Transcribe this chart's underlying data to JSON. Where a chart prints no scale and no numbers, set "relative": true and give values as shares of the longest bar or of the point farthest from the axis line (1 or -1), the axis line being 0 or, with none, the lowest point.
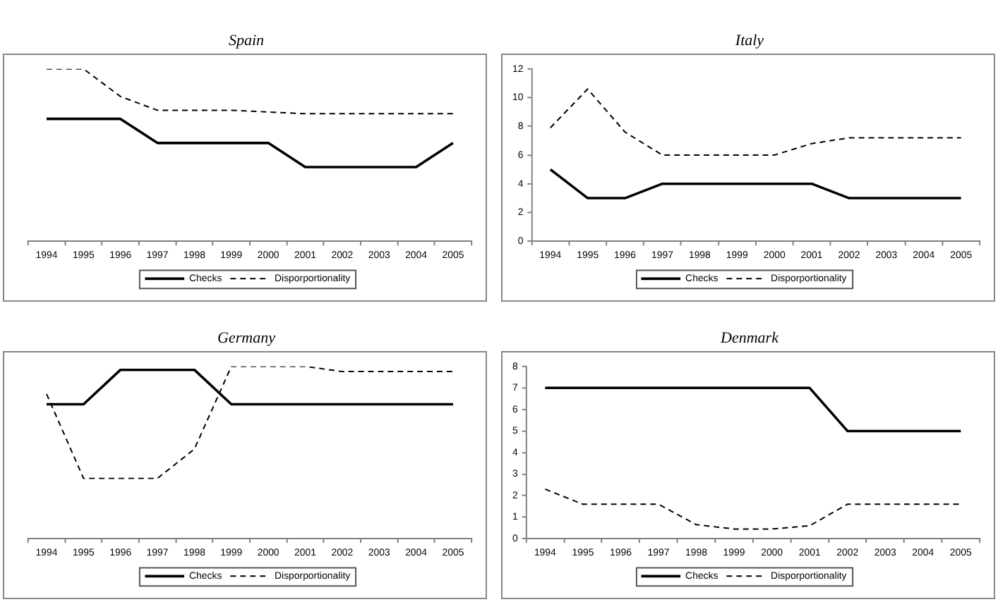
{
  "chart_data": [
    {
      "type": "line",
      "title": "Spain",
      "relative": true,
      "categories": [
        "1994",
        "1995",
        "1996",
        "1997",
        "1998",
        "1999",
        "2000",
        "2001",
        "2002",
        "2003",
        "2004",
        "2005"
      ],
      "legend": "bottom",
      "marker": "none",
      "grid": false,
      "tick_labels": "x",
      "series": [
        {
          "name": "Checks",
          "color": "#000000",
          "line_style": "solid",
          "values": [
            0.71,
            0.71,
            0.71,
            0.57,
            0.57,
            0.57,
            0.57,
            0.43,
            0.43,
            0.43,
            0.43,
            0.57
          ]
        },
        {
          "name": "Disporportionality",
          "color": "#000000",
          "line_style": "dashed",
          "values": [
            1.0,
            1.0,
            0.84,
            0.76,
            0.76,
            0.76,
            0.75,
            0.74,
            0.74,
            0.74,
            0.74,
            0.74
          ]
        }
      ]
    },
    {
      "type": "line",
      "title": "Italy",
      "categories": [
        "1994",
        "1995",
        "1996",
        "1997",
        "1998",
        "1999",
        "2000",
        "2001",
        "2002",
        "2003",
        "2004",
        "2005"
      ],
      "ylim": [
        0,
        12
      ],
      "yticks": [
        0,
        2,
        4,
        6,
        8,
        10,
        12
      ],
      "legend": "bottom",
      "marker": "none",
      "grid": false,
      "series": [
        {
          "name": "Checks",
          "color": "#000000",
          "line_style": "solid",
          "values": [
            5,
            3,
            3,
            4,
            4,
            4,
            4,
            4,
            3,
            3,
            3,
            3
          ]
        },
        {
          "name": "Disporportionality",
          "color": "#000000",
          "line_style": "dashed",
          "values": [
            7.9,
            10.6,
            7.6,
            6.0,
            6.0,
            6.0,
            6.0,
            6.8,
            7.2,
            7.2,
            7.2,
            7.2
          ]
        }
      ]
    },
    {
      "type": "line",
      "title": "Germany",
      "relative": true,
      "categories": [
        "1994",
        "1995",
        "1996",
        "1997",
        "1998",
        "1999",
        "2000",
        "2001",
        "2002",
        "2003",
        "2004",
        "2005"
      ],
      "legend": "bottom",
      "marker": "none",
      "grid": false,
      "tick_labels": "x",
      "series": [
        {
          "name": "Checks",
          "color": "#000000",
          "line_style": "solid",
          "values": [
            0.78,
            0.78,
            0.98,
            0.98,
            0.98,
            0.78,
            0.78,
            0.78,
            0.78,
            0.78,
            0.78,
            0.78
          ]
        },
        {
          "name": "Disporportionality",
          "color": "#000000",
          "line_style": "dashed",
          "values": [
            0.84,
            0.35,
            0.35,
            0.35,
            0.52,
            1.0,
            1.0,
            1.0,
            0.97,
            0.97,
            0.97,
            0.97
          ]
        }
      ]
    },
    {
      "type": "line",
      "title": "Denmark",
      "categories": [
        "1994",
        "1995",
        "1996",
        "1997",
        "1998",
        "1999",
        "2000",
        "2001",
        "2002",
        "2003",
        "2004",
        "2005"
      ],
      "ylim": [
        0,
        8
      ],
      "yticks": [
        0,
        1,
        2,
        3,
        4,
        5,
        6,
        7,
        8
      ],
      "legend": "bottom",
      "marker": "none",
      "grid": false,
      "series": [
        {
          "name": "Checks",
          "color": "#000000",
          "line_style": "solid",
          "values": [
            7,
            7,
            7,
            7,
            7,
            7,
            7,
            7,
            5,
            5,
            5,
            5
          ]
        },
        {
          "name": "Disporportionality",
          "color": "#000000",
          "line_style": "dashed",
          "values": [
            2.3,
            1.6,
            1.6,
            1.6,
            0.65,
            0.45,
            0.45,
            0.6,
            1.6,
            1.6,
            1.6,
            1.6
          ]
        }
      ]
    }
  ]
}
